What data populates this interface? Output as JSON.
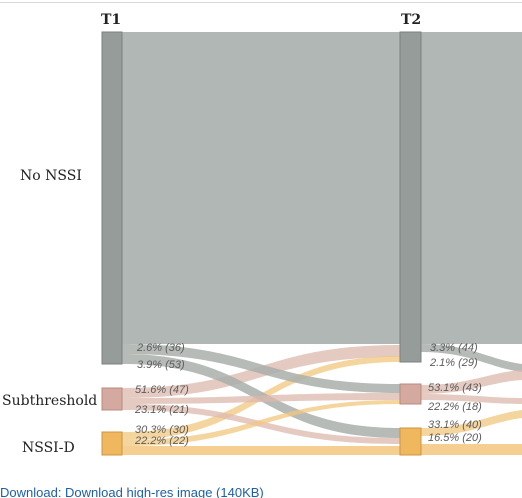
{
  "columns": [
    {
      "id": "T1",
      "label": "T1"
    },
    {
      "id": "T2",
      "label": "T2"
    }
  ],
  "categories": [
    {
      "id": "no_nssi",
      "label": "No NSSI"
    },
    {
      "id": "subthreshold",
      "label": "Subthreshold"
    },
    {
      "id": "nssi_d",
      "label": "NSSI-D"
    }
  ],
  "flow_labels": {
    "t1": {
      "no_nssi": [
        "2.6% (36)",
        "3.9% (53)"
      ],
      "subthreshold": [
        "51.6% (47)",
        "23.1% (21)"
      ],
      "nssi_d": [
        "30.3% (30)",
        "22.2% (22)"
      ]
    },
    "t2": {
      "no_nssi": [
        "3.3% (44)",
        "2.1% (29)"
      ],
      "subthreshold": [
        "53.1% (43)",
        "22.2% (18)"
      ],
      "nssi_d": [
        "33.1% (40)",
        "16.5% (20)"
      ]
    }
  },
  "colors": {
    "no_nssi_node": "#959c99",
    "no_nssi_flow": "#a9afac",
    "subthreshold_node": "#d4a99f",
    "subthreshold_flow": "#dcb8ad",
    "nssi_d_node": "#efb85f",
    "nssi_d_flow": "#f2c77e",
    "label_text": "#5b5b5b"
  },
  "footer": {
    "link_text": "Download: Download high-res image (140KB)"
  }
}
